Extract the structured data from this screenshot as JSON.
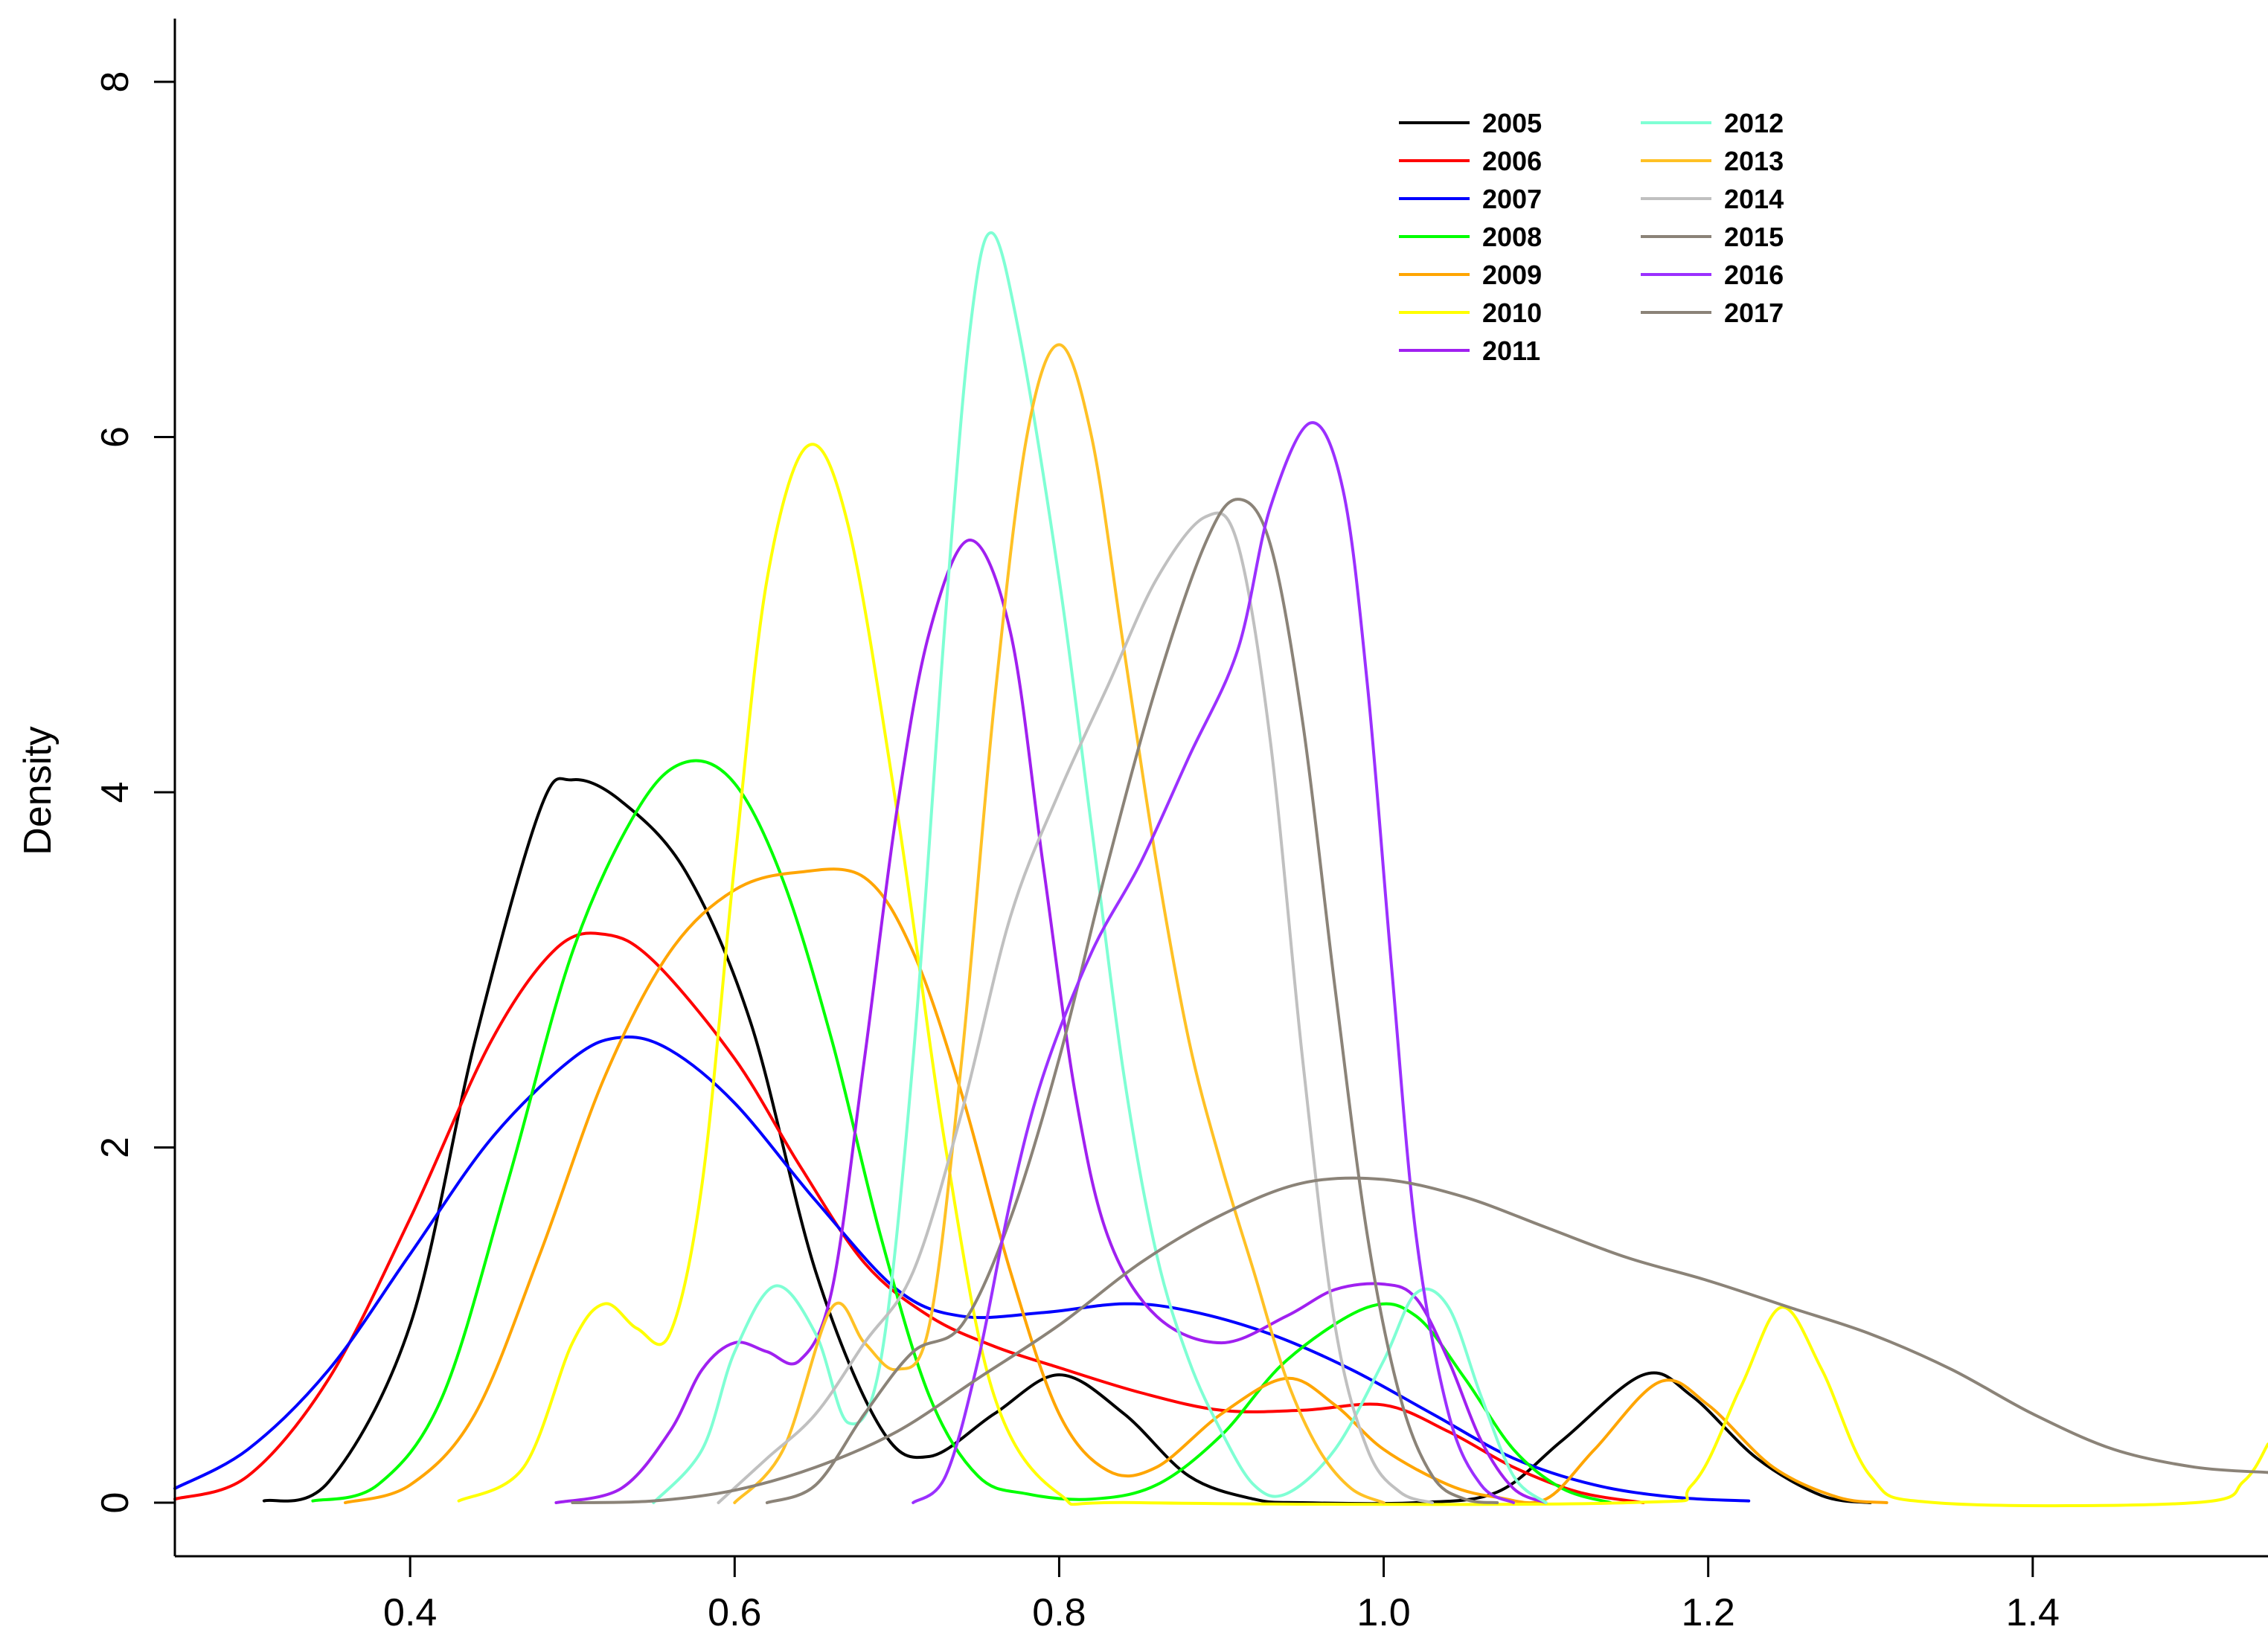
{
  "chart_data": {
    "type": "line",
    "title": "",
    "xlabel": "",
    "ylabel": "Density",
    "xlim": [
      0.255,
      1.545
    ],
    "ylim": [
      0,
      8
    ],
    "xticks": [
      "0.4",
      "0.6",
      "0.8",
      "1.0",
      "1.2",
      "1.4"
    ],
    "xtick_values": [
      0.4,
      0.6,
      0.8,
      1.0,
      1.2,
      1.4
    ],
    "yticks": [
      "0",
      "2",
      "4",
      "6",
      "8"
    ],
    "ytick_values": [
      0,
      2,
      4,
      6,
      8
    ],
    "grid": false,
    "legend_position": "top-right",
    "series": [
      {
        "name": "2005",
        "color": "#000000",
        "points": [
          [
            0.31,
            0.01
          ],
          [
            0.35,
            0.12
          ],
          [
            0.4,
            1.0
          ],
          [
            0.44,
            2.6
          ],
          [
            0.48,
            3.9
          ],
          [
            0.5,
            4.07
          ],
          [
            0.53,
            3.95
          ],
          [
            0.57,
            3.55
          ],
          [
            0.61,
            2.7
          ],
          [
            0.65,
            1.3
          ],
          [
            0.69,
            0.42
          ],
          [
            0.72,
            0.26
          ],
          [
            0.76,
            0.5
          ],
          [
            0.8,
            0.72
          ],
          [
            0.84,
            0.5
          ],
          [
            0.88,
            0.15
          ],
          [
            0.92,
            0.02
          ],
          [
            0.95,
            0.0
          ],
          [
            1.02,
            0.0
          ],
          [
            1.07,
            0.06
          ],
          [
            1.11,
            0.35
          ],
          [
            1.16,
            0.72
          ],
          [
            1.19,
            0.6
          ],
          [
            1.23,
            0.25
          ],
          [
            1.27,
            0.04
          ],
          [
            1.3,
            0.0
          ]
        ]
      },
      {
        "name": "2006",
        "color": "#FF0000",
        "points": [
          [
            0.255,
            0.02
          ],
          [
            0.3,
            0.15
          ],
          [
            0.35,
            0.7
          ],
          [
            0.4,
            1.6
          ],
          [
            0.45,
            2.6
          ],
          [
            0.49,
            3.12
          ],
          [
            0.52,
            3.2
          ],
          [
            0.55,
            3.05
          ],
          [
            0.6,
            2.5
          ],
          [
            0.64,
            1.9
          ],
          [
            0.68,
            1.35
          ],
          [
            0.72,
            1.05
          ],
          [
            0.76,
            0.88
          ],
          [
            0.8,
            0.76
          ],
          [
            0.85,
            0.62
          ],
          [
            0.9,
            0.52
          ],
          [
            0.95,
            0.52
          ],
          [
            1.0,
            0.55
          ],
          [
            1.04,
            0.4
          ],
          [
            1.08,
            0.2
          ],
          [
            1.12,
            0.06
          ],
          [
            1.16,
            0.0
          ]
        ]
      },
      {
        "name": "2007",
        "color": "#0000FF",
        "points": [
          [
            0.255,
            0.08
          ],
          [
            0.3,
            0.3
          ],
          [
            0.35,
            0.75
          ],
          [
            0.4,
            1.4
          ],
          [
            0.45,
            2.05
          ],
          [
            0.5,
            2.5
          ],
          [
            0.53,
            2.62
          ],
          [
            0.56,
            2.55
          ],
          [
            0.6,
            2.25
          ],
          [
            0.65,
            1.7
          ],
          [
            0.7,
            1.2
          ],
          [
            0.74,
            1.05
          ],
          [
            0.79,
            1.07
          ],
          [
            0.84,
            1.12
          ],
          [
            0.88,
            1.08
          ],
          [
            0.93,
            0.95
          ],
          [
            0.98,
            0.75
          ],
          [
            1.03,
            0.5
          ],
          [
            1.08,
            0.25
          ],
          [
            1.13,
            0.1
          ],
          [
            1.18,
            0.03
          ],
          [
            1.225,
            0.01
          ]
        ]
      },
      {
        "name": "2008",
        "color": "#00FF00",
        "points": [
          [
            0.34,
            0.01
          ],
          [
            0.38,
            0.1
          ],
          [
            0.42,
            0.6
          ],
          [
            0.46,
            1.8
          ],
          [
            0.5,
            3.1
          ],
          [
            0.54,
            3.9
          ],
          [
            0.57,
            4.17
          ],
          [
            0.6,
            4.05
          ],
          [
            0.63,
            3.5
          ],
          [
            0.66,
            2.6
          ],
          [
            0.69,
            1.5
          ],
          [
            0.72,
            0.6
          ],
          [
            0.75,
            0.15
          ],
          [
            0.78,
            0.05
          ],
          [
            0.82,
            0.02
          ],
          [
            0.86,
            0.1
          ],
          [
            0.9,
            0.38
          ],
          [
            0.94,
            0.8
          ],
          [
            0.99,
            1.1
          ],
          [
            1.02,
            1.05
          ],
          [
            1.05,
            0.7
          ],
          [
            1.08,
            0.3
          ],
          [
            1.11,
            0.08
          ],
          [
            1.14,
            0.0
          ]
        ]
      },
      {
        "name": "2009",
        "color": "#FFA500",
        "points": [
          [
            0.36,
            0.0
          ],
          [
            0.4,
            0.1
          ],
          [
            0.44,
            0.5
          ],
          [
            0.48,
            1.4
          ],
          [
            0.52,
            2.4
          ],
          [
            0.56,
            3.1
          ],
          [
            0.6,
            3.45
          ],
          [
            0.64,
            3.55
          ],
          [
            0.68,
            3.52
          ],
          [
            0.71,
            3.1
          ],
          [
            0.74,
            2.3
          ],
          [
            0.77,
            1.3
          ],
          [
            0.8,
            0.5
          ],
          [
            0.83,
            0.18
          ],
          [
            0.86,
            0.2
          ],
          [
            0.9,
            0.5
          ],
          [
            0.94,
            0.7
          ],
          [
            0.97,
            0.55
          ],
          [
            1.0,
            0.3
          ],
          [
            1.04,
            0.1
          ],
          [
            1.07,
            0.03
          ],
          [
            1.1,
            0.02
          ],
          [
            1.13,
            0.3
          ],
          [
            1.17,
            0.68
          ],
          [
            1.2,
            0.55
          ],
          [
            1.24,
            0.2
          ],
          [
            1.28,
            0.03
          ],
          [
            1.31,
            0.0
          ]
        ]
      },
      {
        "name": "2010",
        "color": "#FFFF00",
        "points": [
          [
            0.43,
            0.01
          ],
          [
            0.47,
            0.2
          ],
          [
            0.5,
            0.9
          ],
          [
            0.52,
            1.12
          ],
          [
            0.54,
            0.98
          ],
          [
            0.56,
            0.95
          ],
          [
            0.58,
            1.8
          ],
          [
            0.6,
            3.6
          ],
          [
            0.62,
            5.2
          ],
          [
            0.645,
            5.95
          ],
          [
            0.67,
            5.5
          ],
          [
            0.7,
            3.9
          ],
          [
            0.73,
            2.0
          ],
          [
            0.76,
            0.6
          ],
          [
            0.8,
            0.05
          ],
          [
            0.85,
            0.0
          ],
          [
            1.15,
            0.0
          ],
          [
            1.19,
            0.1
          ],
          [
            1.22,
            0.65
          ],
          [
            1.245,
            1.1
          ],
          [
            1.27,
            0.75
          ],
          [
            1.3,
            0.15
          ],
          [
            1.34,
            0.0
          ],
          [
            1.5,
            0.0
          ],
          [
            1.53,
            0.12
          ],
          [
            1.545,
            0.33
          ]
        ]
      },
      {
        "name": "2011",
        "color": "#A020F0",
        "points": [
          [
            0.49,
            0.0
          ],
          [
            0.53,
            0.08
          ],
          [
            0.56,
            0.4
          ],
          [
            0.58,
            0.75
          ],
          [
            0.6,
            0.9
          ],
          [
            0.62,
            0.85
          ],
          [
            0.64,
            0.8
          ],
          [
            0.66,
            1.2
          ],
          [
            0.68,
            2.5
          ],
          [
            0.7,
            3.9
          ],
          [
            0.72,
            4.9
          ],
          [
            0.745,
            5.42
          ],
          [
            0.77,
            4.9
          ],
          [
            0.79,
            3.6
          ],
          [
            0.81,
            2.3
          ],
          [
            0.83,
            1.5
          ],
          [
            0.86,
            1.05
          ],
          [
            0.9,
            0.9
          ],
          [
            0.94,
            1.05
          ],
          [
            0.97,
            1.2
          ],
          [
            1.0,
            1.23
          ],
          [
            1.02,
            1.15
          ],
          [
            1.04,
            0.8
          ],
          [
            1.06,
            0.35
          ],
          [
            1.08,
            0.08
          ],
          [
            1.1,
            0.0
          ]
        ]
      },
      {
        "name": "2012",
        "color": "#7FFFD4",
        "points": [
          [
            0.55,
            0.0
          ],
          [
            0.58,
            0.3
          ],
          [
            0.6,
            0.85
          ],
          [
            0.625,
            1.22
          ],
          [
            0.65,
            0.95
          ],
          [
            0.67,
            0.45
          ],
          [
            0.69,
            0.8
          ],
          [
            0.71,
            2.5
          ],
          [
            0.73,
            5.0
          ],
          [
            0.745,
            6.6
          ],
          [
            0.758,
            7.15
          ],
          [
            0.775,
            6.6
          ],
          [
            0.8,
            5.2
          ],
          [
            0.82,
            3.8
          ],
          [
            0.84,
            2.4
          ],
          [
            0.86,
            1.4
          ],
          [
            0.88,
            0.8
          ],
          [
            0.9,
            0.4
          ],
          [
            0.92,
            0.1
          ],
          [
            0.94,
            0.05
          ],
          [
            0.97,
            0.3
          ],
          [
            1.0,
            0.8
          ],
          [
            1.02,
            1.18
          ],
          [
            1.04,
            1.1
          ],
          [
            1.06,
            0.6
          ],
          [
            1.08,
            0.15
          ],
          [
            1.1,
            0.0
          ]
        ]
      },
      {
        "name": "2013",
        "color": "#FFC125",
        "points": [
          [
            0.6,
            0.0
          ],
          [
            0.63,
            0.3
          ],
          [
            0.66,
            1.1
          ],
          [
            0.68,
            0.9
          ],
          [
            0.7,
            0.75
          ],
          [
            0.72,
            1.0
          ],
          [
            0.74,
            2.5
          ],
          [
            0.76,
            4.5
          ],
          [
            0.78,
            6.0
          ],
          [
            0.8,
            6.52
          ],
          [
            0.82,
            6.0
          ],
          [
            0.84,
            4.8
          ],
          [
            0.86,
            3.6
          ],
          [
            0.88,
            2.6
          ],
          [
            0.9,
            1.9
          ],
          [
            0.92,
            1.3
          ],
          [
            0.94,
            0.7
          ],
          [
            0.96,
            0.3
          ],
          [
            0.98,
            0.08
          ],
          [
            1.0,
            0.0
          ]
        ]
      },
      {
        "name": "2014",
        "color": "#C0C0C0",
        "points": [
          [
            0.59,
            0.0
          ],
          [
            0.62,
            0.25
          ],
          [
            0.65,
            0.5
          ],
          [
            0.68,
            0.9
          ],
          [
            0.71,
            1.3
          ],
          [
            0.74,
            2.2
          ],
          [
            0.77,
            3.3
          ],
          [
            0.8,
            4.0
          ],
          [
            0.83,
            4.6
          ],
          [
            0.86,
            5.2
          ],
          [
            0.89,
            5.55
          ],
          [
            0.91,
            5.4
          ],
          [
            0.93,
            4.3
          ],
          [
            0.95,
            2.5
          ],
          [
            0.97,
            1.0
          ],
          [
            0.99,
            0.3
          ],
          [
            1.01,
            0.06
          ],
          [
            1.03,
            0.0
          ]
        ]
      },
      {
        "name": "2015",
        "color": "#8B8378",
        "points": [
          [
            0.62,
            0.0
          ],
          [
            0.65,
            0.1
          ],
          [
            0.68,
            0.5
          ],
          [
            0.71,
            0.85
          ],
          [
            0.74,
            1.0
          ],
          [
            0.77,
            1.6
          ],
          [
            0.8,
            2.5
          ],
          [
            0.83,
            3.6
          ],
          [
            0.86,
            4.6
          ],
          [
            0.89,
            5.4
          ],
          [
            0.91,
            5.65
          ],
          [
            0.93,
            5.4
          ],
          [
            0.95,
            4.4
          ],
          [
            0.97,
            2.9
          ],
          [
            0.99,
            1.5
          ],
          [
            1.01,
            0.6
          ],
          [
            1.03,
            0.15
          ],
          [
            1.05,
            0.02
          ],
          [
            1.07,
            0.0
          ]
        ]
      },
      {
        "name": "2016",
        "color": "#9B30FF",
        "points": [
          [
            0.71,
            0.0
          ],
          [
            0.73,
            0.15
          ],
          [
            0.75,
            0.8
          ],
          [
            0.77,
            1.7
          ],
          [
            0.79,
            2.4
          ],
          [
            0.82,
            3.1
          ],
          [
            0.85,
            3.6
          ],
          [
            0.88,
            4.2
          ],
          [
            0.91,
            4.8
          ],
          [
            0.93,
            5.6
          ],
          [
            0.955,
            6.08
          ],
          [
            0.975,
            5.7
          ],
          [
            0.99,
            4.6
          ],
          [
            1.005,
            3.0
          ],
          [
            1.02,
            1.5
          ],
          [
            1.04,
            0.5
          ],
          [
            1.06,
            0.1
          ],
          [
            1.08,
            0.0
          ]
        ]
      },
      {
        "name": "2017",
        "color": "#8B8378",
        "points": [
          [
            0.5,
            0.0
          ],
          [
            0.55,
            0.01
          ],
          [
            0.6,
            0.07
          ],
          [
            0.65,
            0.2
          ],
          [
            0.7,
            0.4
          ],
          [
            0.75,
            0.7
          ],
          [
            0.8,
            1.0
          ],
          [
            0.85,
            1.35
          ],
          [
            0.9,
            1.62
          ],
          [
            0.95,
            1.8
          ],
          [
            1.0,
            1.82
          ],
          [
            1.05,
            1.72
          ],
          [
            1.1,
            1.55
          ],
          [
            1.15,
            1.38
          ],
          [
            1.2,
            1.25
          ],
          [
            1.25,
            1.1
          ],
          [
            1.3,
            0.95
          ],
          [
            1.35,
            0.75
          ],
          [
            1.4,
            0.5
          ],
          [
            1.45,
            0.3
          ],
          [
            1.5,
            0.2
          ],
          [
            1.545,
            0.17
          ]
        ]
      }
    ]
  }
}
